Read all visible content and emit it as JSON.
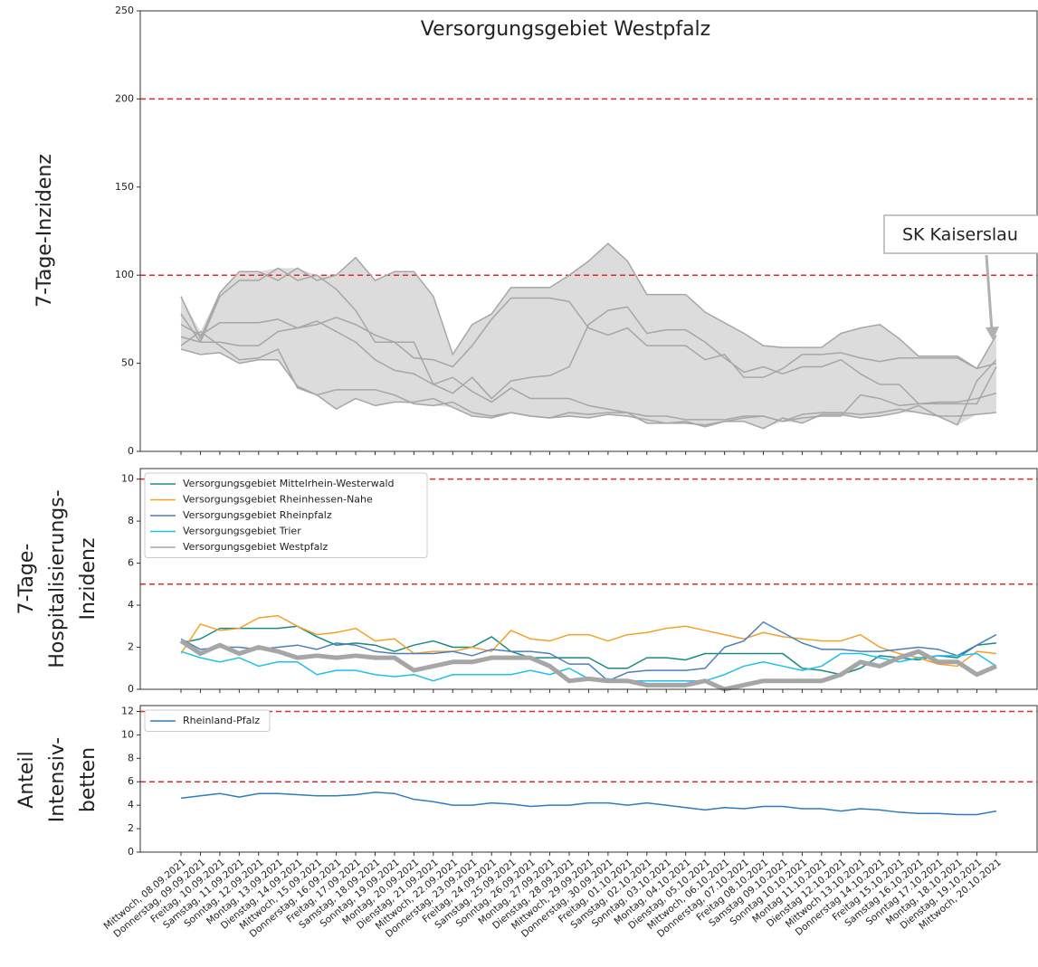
{
  "chart_data": [
    {
      "type": "line",
      "title": "Versorgungsgebiet Westpfalz",
      "ylabel": [
        "7-Tage-Inzidenz"
      ],
      "ylim": [
        0,
        250
      ],
      "yticks": [
        0,
        50,
        100,
        150,
        200,
        250
      ],
      "thresholds": [
        100,
        200
      ],
      "threshold_color": "#e8262a",
      "band_color": "#dcdcdc",
      "annotation": {
        "text": "SK Kaiserslau"
      },
      "series": [
        {
          "color": "#a6a6a6",
          "values": [
            88,
            64,
            90,
            102,
            102,
            97,
            104,
            97,
            100,
            110,
            97,
            102,
            102,
            88,
            55,
            72,
            78,
            93,
            93,
            93,
            100,
            108,
            118,
            108,
            89,
            89,
            89,
            79,
            73,
            67,
            60,
            59,
            59,
            59,
            67,
            70,
            72,
            64,
            54,
            54,
            54,
            47,
            66
          ]
        },
        {
          "color": "#a6a6a6",
          "values": [
            78,
            62,
            88,
            97,
            97,
            104,
            97,
            100,
            92,
            80,
            62,
            62,
            53,
            52,
            48,
            60,
            75,
            87,
            87,
            87,
            85,
            70,
            66,
            70,
            60,
            60,
            60,
            52,
            55,
            42,
            42,
            47,
            55,
            55,
            56,
            53,
            51,
            53,
            53,
            53,
            53,
            47,
            50
          ]
        },
        {
          "color": "#a6a6a6",
          "values": [
            72,
            66,
            73,
            73,
            73,
            75,
            70,
            72,
            76,
            72,
            66,
            62,
            62,
            38,
            33,
            42,
            30,
            40,
            42,
            43,
            48,
            72,
            80,
            82,
            67,
            69,
            69,
            62,
            53,
            45,
            48,
            44,
            48,
            48,
            52,
            44,
            38,
            38,
            27,
            27,
            27,
            27,
            48
          ]
        },
        {
          "color": "#a6a6a6",
          "values": [
            65,
            62,
            62,
            60,
            60,
            68,
            70,
            74,
            68,
            62,
            52,
            46,
            44,
            38,
            42,
            34,
            28,
            36,
            30,
            30,
            30,
            26,
            24,
            22,
            20,
            20,
            18,
            18,
            18,
            20,
            20,
            17,
            19,
            20,
            20,
            32,
            30,
            26,
            27,
            28,
            28,
            30,
            33
          ]
        },
        {
          "color": "#a6a6a6",
          "values": [
            58,
            55,
            56,
            50,
            52,
            52,
            37,
            32,
            24,
            30,
            26,
            28,
            28,
            30,
            25,
            20,
            19,
            22,
            20,
            19,
            20,
            19,
            21,
            20,
            18,
            16,
            16,
            15,
            17,
            17,
            13,
            19,
            16,
            21,
            21,
            19,
            20,
            22,
            26,
            20,
            20,
            21,
            22
          ]
        },
        {
          "color": "#a6a6a6",
          "values": [
            60,
            68,
            60,
            52,
            53,
            58,
            36,
            32,
            35,
            35,
            35,
            32,
            27,
            26,
            28,
            22,
            20,
            22,
            20,
            19,
            22,
            21,
            22,
            22,
            16,
            16,
            17,
            14,
            17,
            19,
            20,
            17,
            21,
            22,
            22,
            21,
            22,
            24,
            22,
            20,
            15,
            40,
            52
          ]
        }
      ]
    },
    {
      "type": "line",
      "ylabel": [
        "7-Tage-",
        "Hospitalisierungs-",
        "Inzidenz"
      ],
      "ylim": [
        0,
        10.5
      ],
      "yticks": [
        0,
        2,
        4,
        6,
        8,
        10
      ],
      "thresholds": [
        5,
        10
      ],
      "threshold_color": "#e8262a",
      "series": [
        {
          "name": "Versorgungsgebiet Mittelrhein-Westerwald",
          "color": "#1a8a80",
          "width": 1.5,
          "values": [
            2.2,
            2.4,
            2.9,
            2.9,
            2.9,
            2.9,
            3.0,
            2.5,
            2.1,
            2.2,
            2.1,
            1.8,
            2.1,
            2.3,
            2.0,
            2.0,
            2.5,
            1.8,
            1.5,
            1.5,
            1.5,
            1.5,
            1.0,
            1.0,
            1.5,
            1.5,
            1.4,
            1.7,
            1.7,
            1.7,
            1.7,
            1.7,
            1.0,
            0.9,
            0.7,
            1.0,
            1.6,
            1.5,
            1.4,
            1.6,
            1.5,
            2.1,
            2.2
          ]
        },
        {
          "name": "Versorgungsgebiet Rheinhessen-Nahe",
          "color": "#f5a02a",
          "width": 1.5,
          "values": [
            1.7,
            3.1,
            2.8,
            2.9,
            3.4,
            3.5,
            3.0,
            2.6,
            2.7,
            2.9,
            2.3,
            2.4,
            1.7,
            1.8,
            1.8,
            2.0,
            1.8,
            2.8,
            2.4,
            2.3,
            2.6,
            2.6,
            2.3,
            2.6,
            2.7,
            2.9,
            3.0,
            2.8,
            2.6,
            2.4,
            2.7,
            2.5,
            2.4,
            2.3,
            2.3,
            2.6,
            2.0,
            1.7,
            1.5,
            1.2,
            1.1,
            1.8,
            1.7
          ]
        },
        {
          "name": "Versorgungsgebiet Rheinpfalz",
          "color": "#4a7fc0",
          "width": 1.5,
          "values": [
            2.4,
            1.9,
            2.0,
            2.0,
            1.9,
            2.0,
            2.1,
            1.9,
            2.2,
            2.1,
            1.8,
            1.7,
            1.7,
            1.7,
            1.8,
            1.6,
            1.9,
            1.8,
            1.8,
            1.7,
            1.2,
            1.2,
            0.4,
            0.8,
            0.9,
            0.9,
            0.9,
            1.0,
            2.0,
            2.3,
            3.2,
            2.7,
            2.2,
            1.9,
            1.9,
            1.8,
            1.8,
            1.9,
            2.0,
            1.9,
            1.6,
            2.1,
            2.6
          ]
        },
        {
          "name": "Versorgungsgebiet Trier",
          "color": "#1fbfee",
          "width": 1.5,
          "values": [
            1.8,
            1.5,
            1.3,
            1.5,
            1.1,
            1.3,
            1.3,
            0.7,
            0.9,
            0.9,
            0.7,
            0.6,
            0.7,
            0.4,
            0.7,
            0.7,
            0.7,
            0.7,
            0.9,
            0.7,
            1.0,
            0.5,
            0.5,
            0.4,
            0.4,
            0.4,
            0.4,
            0.4,
            0.7,
            1.1,
            1.3,
            1.1,
            0.9,
            1.1,
            1.7,
            1.7,
            1.5,
            1.3,
            1.5,
            1.6,
            1.6,
            1.7,
            1.1
          ]
        },
        {
          "name": "Versorgungsgebiet Westpfalz",
          "color": "#a6a6a6",
          "width": 5,
          "values": [
            2.3,
            1.7,
            2.1,
            1.7,
            2.0,
            1.8,
            1.5,
            1.6,
            1.5,
            1.6,
            1.5,
            1.5,
            0.9,
            1.1,
            1.3,
            1.3,
            1.5,
            1.5,
            1.5,
            1.1,
            0.4,
            0.5,
            0.4,
            0.4,
            0.2,
            0.2,
            0.2,
            0.4,
            0.0,
            0.2,
            0.4,
            0.4,
            0.4,
            0.4,
            0.7,
            1.3,
            1.1,
            1.5,
            1.8,
            1.3,
            1.3,
            0.7,
            1.1
          ]
        }
      ]
    },
    {
      "type": "line",
      "ylabel": [
        "Anteil",
        "Intensiv-",
        "betten"
      ],
      "ylim": [
        0,
        12.5
      ],
      "yticks": [
        0,
        2,
        4,
        6,
        8,
        10,
        12
      ],
      "thresholds": [
        6,
        12
      ],
      "threshold_color": "#e8262a",
      "categories": [
        "Mittwoch, 08.09.2021",
        "Donnerstag, 09.09.2021",
        "Freitag, 10.09.2021",
        "Samstag, 11.09.2021",
        "Sonntag, 12.09.2021",
        "Montag, 13.09.2021",
        "Dienstag, 14.09.2021",
        "Mittwoch, 15.09.2021",
        "Donnerstag, 16.09.2021",
        "Freitag, 17.09.2021",
        "Samstag, 18.09.2021",
        "Sonntag, 19.09.2021",
        "Montag, 20.09.2021",
        "Dienstag, 21.09.2021",
        "Mittwoch, 22.09.2021",
        "Donnerstag, 23.09.2021",
        "Freitag, 24.09.2021",
        "Samstag, 25.09.2021",
        "Sonntag, 26.09.2021",
        "Montag, 27.09.2021",
        "Dienstag, 28.09.2021",
        "Mittwoch, 29.09.2021",
        "Donnerstag, 30.09.2021",
        "Freitag, 01.10.2021",
        "Samstag, 02.10.2021",
        "Sonntag, 03.10.2021",
        "Montag, 04.10.2021",
        "Dienstag, 05.10.2021",
        "Mittwoch, 06.10.2021",
        "Donnerstag, 07.10.2021",
        "Freitag 08.10.2021",
        "Samstag 09.10.2021",
        "Sonntag 10.10.2021",
        "Montag 11.10.2021",
        "Dienstag 12.10.2021",
        "Mittwoch 13.10.2021",
        "Donnerstag 14.10.2021",
        "Freitag 15.10.2021",
        "Samstag 16.10.2021",
        "Sonntag 17.10.2021",
        "Montag, 18.10.2021",
        "Dienstag, 19.10.2021",
        "Mittwoch, 20.10.2021"
      ],
      "series": [
        {
          "name": "Rheinland-Pfalz",
          "color": "#2f7bbf",
          "width": 1.5,
          "values": [
            4.6,
            4.8,
            5.0,
            4.7,
            5.0,
            5.0,
            4.9,
            4.8,
            4.8,
            4.9,
            5.1,
            5.0,
            4.5,
            4.3,
            4.0,
            4.0,
            4.2,
            4.1,
            3.9,
            4.0,
            4.0,
            4.2,
            4.2,
            4.0,
            4.2,
            4.0,
            3.8,
            3.6,
            3.8,
            3.7,
            3.9,
            3.9,
            3.7,
            3.7,
            3.5,
            3.7,
            3.6,
            3.4,
            3.3,
            3.3,
            3.2,
            3.2,
            3.5
          ]
        }
      ]
    }
  ]
}
